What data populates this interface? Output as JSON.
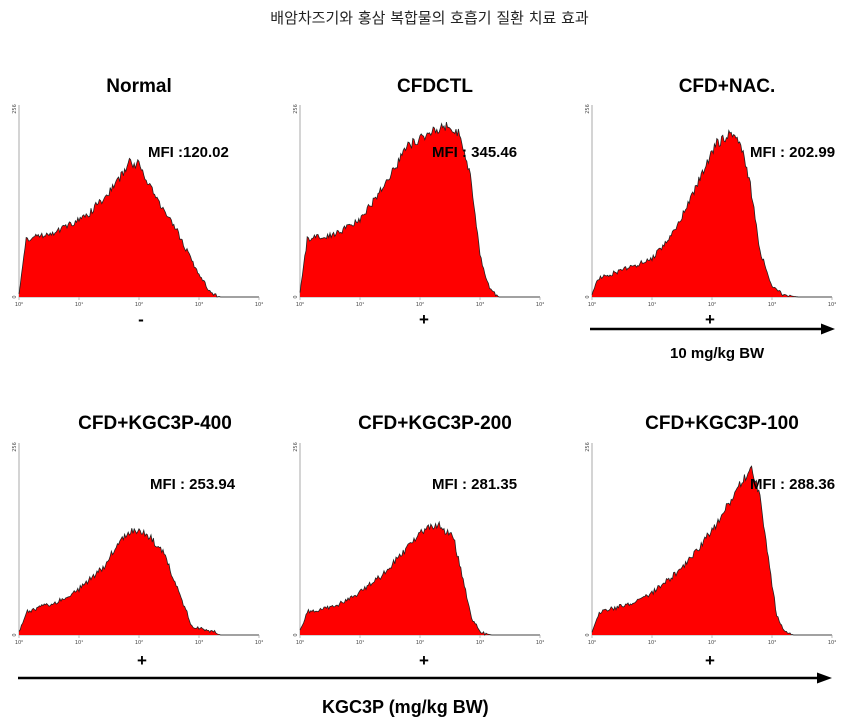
{
  "title": "배암차즈기와 홍삼 복합물의 호흡기 질환 치료 효과",
  "chart_data": [
    {
      "type": "area",
      "title": "Normal",
      "mfi": "MFI :120.02",
      "treatment": "-",
      "shape": [
        [
          0,
          0.02
        ],
        [
          0.03,
          0.3
        ],
        [
          0.15,
          0.34
        ],
        [
          0.28,
          0.42
        ],
        [
          0.4,
          0.58
        ],
        [
          0.46,
          0.7
        ],
        [
          0.5,
          0.69
        ],
        [
          0.58,
          0.5
        ],
        [
          0.66,
          0.34
        ],
        [
          0.74,
          0.14
        ],
        [
          0.8,
          0.02
        ],
        [
          0.84,
          0.0
        ],
        [
          1.0,
          0.0
        ]
      ]
    },
    {
      "type": "area",
      "title": "CFDCTL",
      "mfi": "MFI : 345.46",
      "treatment": "+",
      "shape": [
        [
          0,
          0.02
        ],
        [
          0.03,
          0.3
        ],
        [
          0.15,
          0.33
        ],
        [
          0.25,
          0.4
        ],
        [
          0.35,
          0.58
        ],
        [
          0.45,
          0.79
        ],
        [
          0.55,
          0.86
        ],
        [
          0.62,
          0.89
        ],
        [
          0.67,
          0.84
        ],
        [
          0.71,
          0.62
        ],
        [
          0.75,
          0.22
        ],
        [
          0.79,
          0.04
        ],
        [
          0.83,
          0.0
        ],
        [
          1.0,
          0.0
        ]
      ]
    },
    {
      "type": "area",
      "title": "CFD+NAC.",
      "mfi": "MFI : 202.99",
      "treatment": "+",
      "shape": [
        [
          0,
          0.02
        ],
        [
          0.03,
          0.1
        ],
        [
          0.15,
          0.15
        ],
        [
          0.25,
          0.2
        ],
        [
          0.35,
          0.35
        ],
        [
          0.45,
          0.62
        ],
        [
          0.52,
          0.8
        ],
        [
          0.57,
          0.85
        ],
        [
          0.62,
          0.8
        ],
        [
          0.66,
          0.58
        ],
        [
          0.7,
          0.24
        ],
        [
          0.75,
          0.06
        ],
        [
          0.8,
          0.01
        ],
        [
          0.86,
          0.0
        ],
        [
          1.0,
          0.0
        ]
      ]
    },
    {
      "type": "area",
      "title": "CFD+KGC3P-400",
      "mfi": "MFI : 253.94",
      "treatment": "+",
      "shape": [
        [
          0,
          0.02
        ],
        [
          0.03,
          0.12
        ],
        [
          0.15,
          0.17
        ],
        [
          0.25,
          0.24
        ],
        [
          0.35,
          0.35
        ],
        [
          0.42,
          0.49
        ],
        [
          0.48,
          0.55
        ],
        [
          0.53,
          0.53
        ],
        [
          0.6,
          0.44
        ],
        [
          0.66,
          0.24
        ],
        [
          0.72,
          0.05
        ],
        [
          0.78,
          0.02
        ],
        [
          0.82,
          0.02
        ],
        [
          0.84,
          0.0
        ],
        [
          1.0,
          0.0
        ]
      ]
    },
    {
      "type": "area",
      "title": "CFD+KGC3P-200",
      "mfi": "MFI : 281.35",
      "treatment": "+",
      "shape": [
        [
          0,
          0.02
        ],
        [
          0.03,
          0.12
        ],
        [
          0.15,
          0.15
        ],
        [
          0.25,
          0.22
        ],
        [
          0.35,
          0.32
        ],
        [
          0.45,
          0.46
        ],
        [
          0.52,
          0.55
        ],
        [
          0.58,
          0.57
        ],
        [
          0.64,
          0.51
        ],
        [
          0.68,
          0.28
        ],
        [
          0.72,
          0.07
        ],
        [
          0.76,
          0.01
        ],
        [
          0.8,
          0.0
        ],
        [
          1.0,
          0.0
        ]
      ]
    },
    {
      "type": "area",
      "title": "CFD+KGC3P-100",
      "mfi": "MFI : 288.36",
      "treatment": "+",
      "shape": [
        [
          0,
          0.02
        ],
        [
          0.03,
          0.12
        ],
        [
          0.15,
          0.16
        ],
        [
          0.25,
          0.22
        ],
        [
          0.35,
          0.32
        ],
        [
          0.45,
          0.46
        ],
        [
          0.53,
          0.6
        ],
        [
          0.6,
          0.75
        ],
        [
          0.65,
          0.84
        ],
        [
          0.67,
          0.86
        ],
        [
          0.7,
          0.72
        ],
        [
          0.74,
          0.35
        ],
        [
          0.77,
          0.1
        ],
        [
          0.8,
          0.02
        ],
        [
          0.84,
          0.0
        ],
        [
          1.0,
          0.0
        ]
      ]
    }
  ],
  "axis": {
    "xticks": [
      "10⁰",
      "10¹",
      "10²",
      "10³",
      "10⁴"
    ],
    "yticks": [
      "0",
      "256"
    ]
  },
  "nac_arrow_label": "10 mg/kg BW",
  "kgc_arrow_label": "KGC3P (mg/kg BW)",
  "colors": {
    "fill": "#ff0000",
    "outline": "#222222",
    "axis": "#aaaaaa"
  }
}
